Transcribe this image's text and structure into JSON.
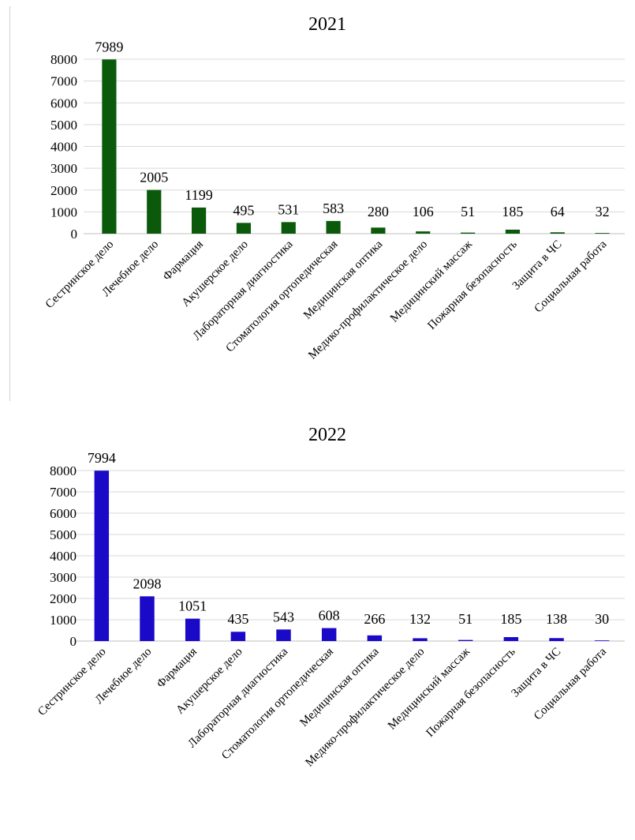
{
  "chart_data": [
    {
      "type": "bar",
      "title": "2021",
      "color": "#0b5a0b",
      "categories": [
        "Сестринское дело",
        "Лечебное дело",
        "Фармация",
        "Акушерское  дело",
        "Лабораторная диагностика",
        "Стоматология ортопедическая",
        "Медицинская оптика",
        "Медико-профилактическое дело",
        "Медицинский массаж",
        "Пожарная безопасность",
        "Защита в ЧС",
        "Социальная работа"
      ],
      "values": [
        7989,
        2005,
        1199,
        495,
        531,
        583,
        280,
        106,
        51,
        185,
        64,
        32
      ],
      "ylim": [
        0,
        8000
      ],
      "yticks": [
        "0",
        "1000",
        "2000",
        "3000",
        "4000",
        "5000",
        "6000",
        "7000",
        "8000"
      ],
      "grid": true,
      "legend": "none"
    },
    {
      "type": "bar",
      "title": "2022",
      "color": "#1a0ac8",
      "categories": [
        "Сестринское дело",
        "Лечебное дело",
        "Фармация",
        "Акушерское  дело",
        "Лабораторная диагностика",
        "Стоматология ортопедическая",
        "Медицинская оптика",
        "Медико-профилактическое дело",
        "Медицинский массаж",
        "Пожарная безопасность",
        "Защита в ЧС",
        "Социальная работа"
      ],
      "values": [
        7994,
        2098,
        1051,
        435,
        543,
        608,
        266,
        132,
        51,
        185,
        138,
        30
      ],
      "ylim": [
        0,
        8000
      ],
      "yticks": [
        "0",
        "1000",
        "2000",
        "3000",
        "4000",
        "5000",
        "6000",
        "7000",
        "8000"
      ],
      "grid": true,
      "legend": "none"
    }
  ]
}
